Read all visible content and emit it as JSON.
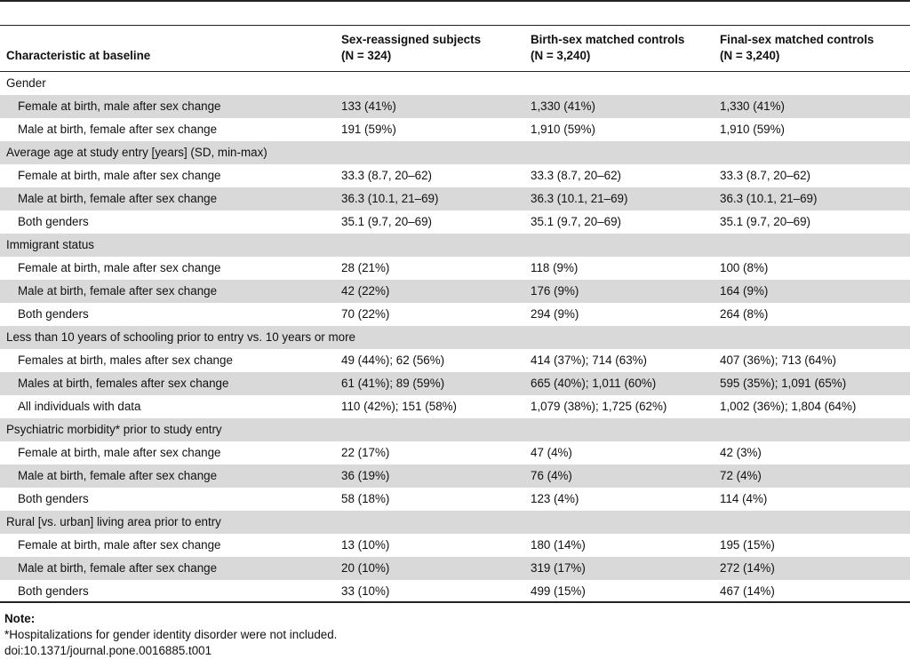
{
  "header": {
    "col0": "Characteristic at baseline",
    "col1_line1": "Sex-reassigned subjects",
    "col1_line2": "(N = 324)",
    "col2_line1": "Birth-sex matched controls",
    "col2_line2": "(N = 3,240)",
    "col3_line1": "Final-sex matched controls",
    "col3_line2": "(N = 3,240)"
  },
  "rows": [
    {
      "type": "section",
      "label": "Gender"
    },
    {
      "type": "sub",
      "label": "Female at birth, male after sex change",
      "c1": "133 (41%)",
      "c2": "1,330 (41%)",
      "c3": "1,330 (41%)"
    },
    {
      "type": "sub",
      "label": "Male at birth, female after sex change",
      "c1": "191 (59%)",
      "c2": "1,910 (59%)",
      "c3": "1,910 (59%)"
    },
    {
      "type": "section",
      "label": "Average age at study entry [years] (SD, min-max)"
    },
    {
      "type": "sub",
      "label": "Female at birth, male after sex change",
      "c1": "33.3 (8.7, 20–62)",
      "c2": "33.3 (8.7, 20–62)",
      "c3": "33.3 (8.7, 20–62)"
    },
    {
      "type": "sub",
      "label": "Male at birth, female after sex change",
      "c1": "36.3 (10.1, 21–69)",
      "c2": "36.3 (10.1, 21–69)",
      "c3": "36.3 (10.1, 21–69)"
    },
    {
      "type": "sub",
      "label": "Both genders",
      "c1": "35.1 (9.7, 20–69)",
      "c2": "35.1 (9.7, 20–69)",
      "c3": "35.1 (9.7, 20–69)"
    },
    {
      "type": "section",
      "label": "Immigrant status"
    },
    {
      "type": "sub",
      "label": "Female at birth, male after sex change",
      "c1": "28 (21%)",
      "c2": "118 (9%)",
      "c3": "100 (8%)"
    },
    {
      "type": "sub",
      "label": "Male at birth, female after sex change",
      "c1": "42 (22%)",
      "c2": "176 (9%)",
      "c3": "164 (9%)"
    },
    {
      "type": "sub",
      "label": "Both genders",
      "c1": "70 (22%)",
      "c2": "294 (9%)",
      "c3": "264 (8%)"
    },
    {
      "type": "section",
      "label": "Less than 10 years of schooling prior to entry vs. 10 years or more"
    },
    {
      "type": "sub",
      "label": "Females at birth, males after sex change",
      "c1": "49 (44%); 62 (56%)",
      "c2": "414 (37%); 714 (63%)",
      "c3": "407 (36%); 713 (64%)"
    },
    {
      "type": "sub",
      "label": "Males at birth, females after sex change",
      "c1": "61 (41%); 89 (59%)",
      "c2": "665 (40%); 1,011 (60%)",
      "c3": "595 (35%); 1,091 (65%)"
    },
    {
      "type": "sub",
      "label": "All individuals with data",
      "c1": "110 (42%); 151 (58%)",
      "c2": "1,079 (38%); 1,725 (62%)",
      "c3": "1,002 (36%); 1,804 (64%)"
    },
    {
      "type": "section",
      "label": "Psychiatric morbidity* prior to study entry"
    },
    {
      "type": "sub",
      "label": "Female at birth, male after sex change",
      "c1": "22 (17%)",
      "c2": "47 (4%)",
      "c3": "42 (3%)"
    },
    {
      "type": "sub",
      "label": "Male at birth, female after sex change",
      "c1": "36 (19%)",
      "c2": "76 (4%)",
      "c3": "72 (4%)"
    },
    {
      "type": "sub",
      "label": "Both genders",
      "c1": "58 (18%)",
      "c2": "123 (4%)",
      "c3": "114 (4%)"
    },
    {
      "type": "section",
      "label": "Rural [vs. urban] living area prior to entry"
    },
    {
      "type": "sub",
      "label": "Female at birth, male after sex change",
      "c1": "13 (10%)",
      "c2": "180 (14%)",
      "c3": "195 (15%)"
    },
    {
      "type": "sub",
      "label": "Male at birth, female after sex change",
      "c1": "20 (10%)",
      "c2": "319 (17%)",
      "c3": "272 (14%)"
    },
    {
      "type": "sub",
      "label": "Both genders",
      "c1": "33 (10%)",
      "c2": "499 (15%)",
      "c3": "467 (14%)"
    }
  ],
  "footer": {
    "note_title": "Note:",
    "note_text": "*Hospitalizations for gender identity disorder were not included.",
    "doi": "doi:10.1371/journal.pone.0016885.t001"
  }
}
